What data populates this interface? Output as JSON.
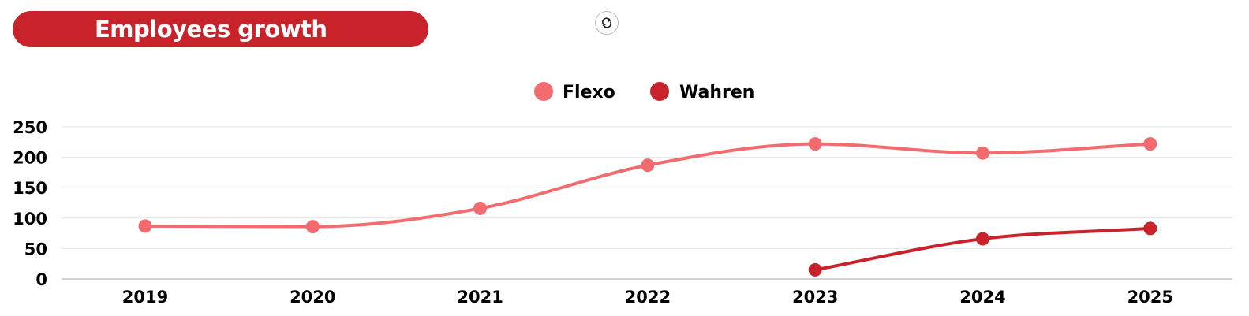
{
  "header": {
    "title": "Employees growth"
  },
  "toolbar": {
    "refresh_icon": "refresh-icon"
  },
  "colors": {
    "title_bg": "#c8232a",
    "flexo": "#f36b6f",
    "wahren": "#c8232a"
  },
  "chart_data": {
    "type": "line",
    "title": "Employees growth",
    "x": [
      "2019",
      "2020",
      "2021",
      "2022",
      "2023",
      "2024",
      "2025"
    ],
    "series": [
      {
        "name": "Flexo",
        "color": "#f36b6f",
        "values": [
          87,
          86,
          116,
          187,
          222,
          207,
          222
        ]
      },
      {
        "name": "Wahren",
        "color": "#c8232a",
        "values": [
          null,
          null,
          null,
          null,
          15,
          66,
          83
        ]
      }
    ],
    "yticks": [
      "0",
      "50",
      "100",
      "150",
      "200",
      "250"
    ],
    "ylim": [
      0,
      250
    ],
    "grid": true,
    "legend": "top-center",
    "smooth": true
  }
}
